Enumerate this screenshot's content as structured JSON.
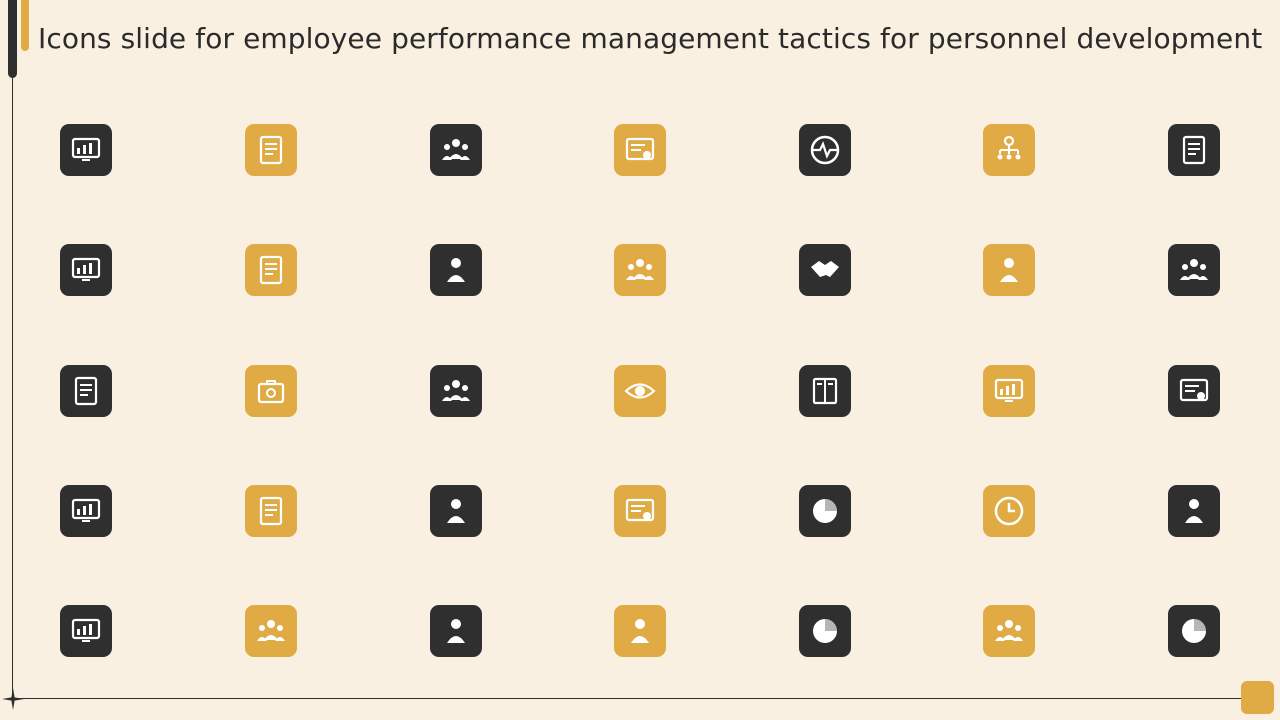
{
  "slide": {
    "title": "Icons slide for employee performance management tactics for personnel development"
  },
  "colors": {
    "background": "#f9f0e2",
    "dark": "#2f2f2f",
    "accent": "#e0ab45",
    "icon_fg": "#ffffff"
  },
  "icons": [
    [
      {
        "name": "monitor-document-icon",
        "color": "dark"
      },
      {
        "name": "process-flow-chart-icon",
        "color": "gold"
      },
      {
        "name": "team-group-icon",
        "color": "dark"
      },
      {
        "name": "calendar-edit-icon",
        "color": "gold"
      },
      {
        "name": "heartbeat-pulse-icon",
        "color": "dark"
      },
      {
        "name": "organization-gear-icon",
        "color": "gold"
      },
      {
        "name": "notepad-pencil-icon",
        "color": "dark"
      }
    ],
    [
      {
        "name": "touch-screen-approval-icon",
        "color": "dark"
      },
      {
        "name": "documents-stack-icon",
        "color": "gold"
      },
      {
        "name": "employee-directions-icon",
        "color": "dark"
      },
      {
        "name": "team-gear-icon",
        "color": "gold"
      },
      {
        "name": "handshake-icon",
        "color": "dark"
      },
      {
        "name": "employee-laptop-icon",
        "color": "gold"
      },
      {
        "name": "team-star-network-icon",
        "color": "dark"
      }
    ],
    [
      {
        "name": "financial-report-icon",
        "color": "dark"
      },
      {
        "name": "briefcase-search-icon",
        "color": "gold"
      },
      {
        "name": "team-discussion-icon",
        "color": "dark"
      },
      {
        "name": "vision-eye-icon",
        "color": "gold"
      },
      {
        "name": "lockers-icon",
        "color": "dark"
      },
      {
        "name": "presentation-board-icon",
        "color": "gold"
      },
      {
        "name": "certificate-graduation-icon",
        "color": "dark"
      }
    ],
    [
      {
        "name": "performance-dashboard-icon",
        "color": "dark"
      },
      {
        "name": "documents-stack-icon",
        "color": "gold"
      },
      {
        "name": "employee-alert-icon",
        "color": "dark"
      },
      {
        "name": "certificate-award-icon",
        "color": "gold"
      },
      {
        "name": "clipboard-pie-chart-icon",
        "color": "dark"
      },
      {
        "name": "clock-icon",
        "color": "gold"
      },
      {
        "name": "employee-flowchart-icon",
        "color": "dark"
      }
    ],
    [
      {
        "name": "performance-dashboard-icon",
        "color": "dark"
      },
      {
        "name": "team-meeting-icon",
        "color": "gold"
      },
      {
        "name": "employee-approved-icon",
        "color": "dark"
      },
      {
        "name": "employee-promotion-icon",
        "color": "gold"
      },
      {
        "name": "dollar-pie-chart-icon",
        "color": "dark"
      },
      {
        "name": "team-presentation-icon",
        "color": "gold"
      },
      {
        "name": "browser-pie-chart-icon",
        "color": "dark"
      }
    ]
  ]
}
